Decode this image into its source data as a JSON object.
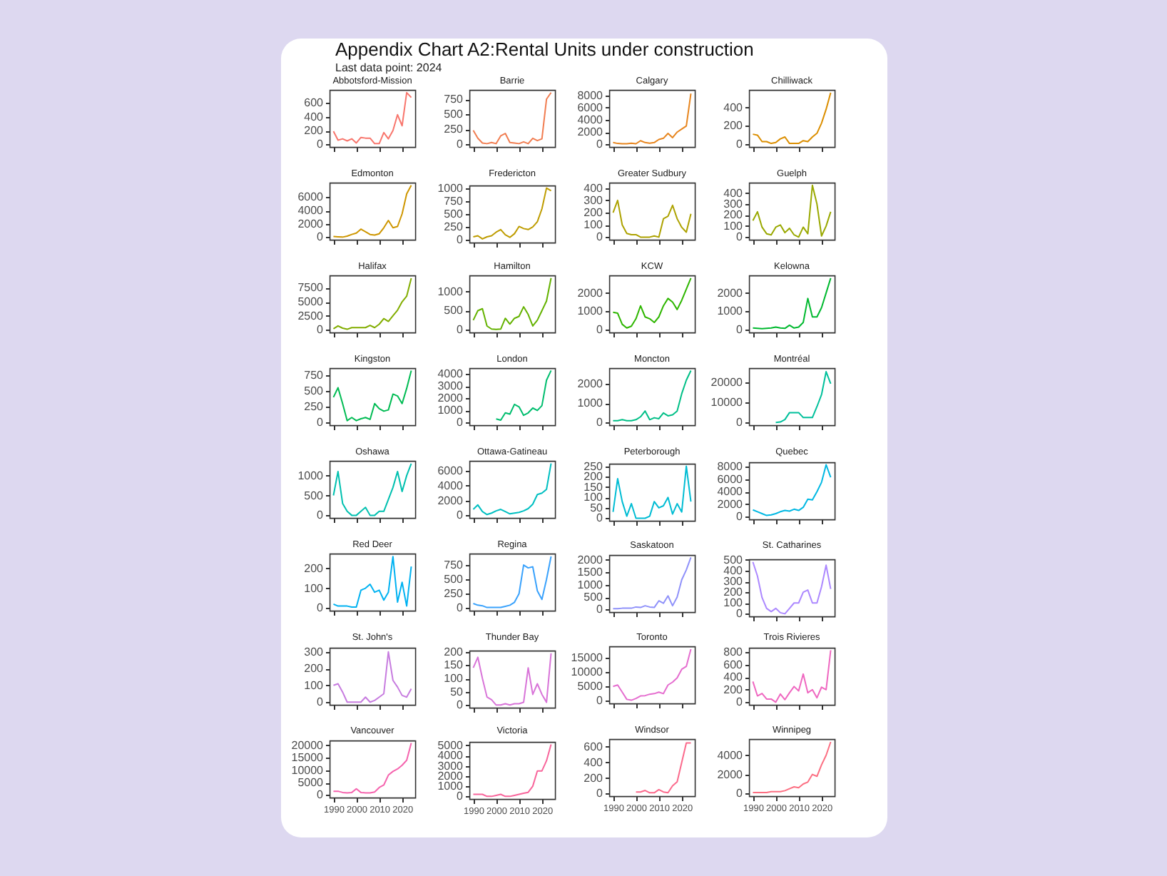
{
  "chart_data": [
    {
      "type": "other",
      "title": "Appendix Chart A2:Rental Units under construction",
      "subtitle": "Last data point: 2024"
    },
    {
      "type": "line",
      "title": "Abbotsford-Mission",
      "color": "#f8766d",
      "x": [
        1990,
        1992,
        1994,
        1996,
        1998,
        2000,
        2002,
        2004,
        2006,
        2008,
        2010,
        2012,
        2014,
        2016,
        2018,
        2020,
        2022,
        2024
      ],
      "values": [
        190,
        60,
        80,
        50,
        80,
        20,
        100,
        90,
        90,
        10,
        10,
        170,
        80,
        200,
        430,
        270,
        750,
        680
      ],
      "xlim": [
        1988.3,
        2025.7
      ],
      "xticks": [
        1990,
        2000,
        2010,
        2020
      ],
      "ylim": [
        -38,
        790
      ],
      "yticks": [
        0,
        200,
        400,
        600
      ],
      "tick_labels": "y"
    },
    {
      "type": "line",
      "title": "Barrie",
      "color": "#f17d51",
      "x": [
        1990,
        1992,
        1994,
        1996,
        1998,
        2000,
        2002,
        2004,
        2006,
        2008,
        2010,
        2012,
        2014,
        2016,
        2018,
        2020,
        2022,
        2024
      ],
      "values": [
        230,
        100,
        20,
        10,
        30,
        10,
        140,
        180,
        30,
        20,
        10,
        40,
        10,
        100,
        60,
        90,
        750,
        860
      ],
      "xlim": [
        1988.3,
        2025.7
      ],
      "xticks": [
        1990,
        2000,
        2010,
        2020
      ],
      "ylim": [
        -45,
        905
      ],
      "yticks": [
        0,
        250,
        500,
        750
      ],
      "tick_labels": "y"
    },
    {
      "type": "line",
      "title": "Calgary",
      "color": "#e7851e",
      "x": [
        1990,
        1992,
        1994,
        1996,
        1998,
        2000,
        2002,
        2004,
        2006,
        2008,
        2010,
        2012,
        2014,
        2016,
        2018,
        2020,
        2022,
        2024
      ],
      "values": [
        300,
        150,
        100,
        100,
        200,
        100,
        600,
        300,
        200,
        300,
        800,
        1000,
        1800,
        1100,
        2000,
        2500,
        3000,
        8300
      ],
      "xlim": [
        1988.3,
        2025.7
      ],
      "xticks": [
        1990,
        2000,
        2010,
        2020
      ],
      "ylim": [
        -420,
        8900
      ],
      "yticks": [
        0,
        2000,
        4000,
        6000,
        8000
      ],
      "tick_labels": "y"
    },
    {
      "type": "line",
      "title": "Chilliwack",
      "color": "#db8e00",
      "x": [
        1990,
        1992,
        1994,
        1996,
        1998,
        2000,
        2002,
        2004,
        2006,
        2008,
        2010,
        2012,
        2014,
        2016,
        2018,
        2020,
        2022,
        2024
      ],
      "values": [
        110,
        100,
        30,
        30,
        10,
        20,
        60,
        80,
        10,
        10,
        10,
        40,
        30,
        80,
        120,
        230,
        380,
        560
      ],
      "xlim": [
        1988.3,
        2025.7
      ],
      "xticks": [
        1990,
        2000,
        2010,
        2020
      ],
      "ylim": [
        -28,
        590
      ],
      "yticks": [
        0,
        200,
        400
      ],
      "tick_labels": "y"
    },
    {
      "type": "line",
      "title": "Edmonton",
      "color": "#ce9600",
      "x": [
        1990,
        1992,
        1994,
        1996,
        1998,
        2000,
        2002,
        2004,
        2006,
        2008,
        2010,
        2012,
        2014,
        2016,
        2018,
        2020,
        2022,
        2024
      ],
      "values": [
        100,
        50,
        0,
        150,
        400,
        600,
        1200,
        800,
        400,
        300,
        500,
        1400,
        2500,
        1400,
        1600,
        3500,
        6500,
        7800
      ],
      "xlim": [
        1988.3,
        2025.7
      ],
      "xticks": [
        1990,
        2000,
        2010,
        2020
      ],
      "ylim": [
        -390,
        8200
      ],
      "yticks": [
        0,
        2000,
        4000,
        6000
      ],
      "tick_labels": "y"
    },
    {
      "type": "line",
      "title": "Fredericton",
      "color": "#be9c00",
      "x": [
        1990,
        1992,
        1994,
        1996,
        1998,
        2000,
        2002,
        2004,
        2006,
        2008,
        2010,
        2012,
        2014,
        2016,
        2018,
        2020,
        2022,
        2024
      ],
      "values": [
        60,
        80,
        20,
        60,
        80,
        150,
        200,
        100,
        50,
        120,
        260,
        220,
        200,
        250,
        350,
        600,
        1000,
        950
      ],
      "xlim": [
        1988.3,
        2025.7
      ],
      "xticks": [
        1990,
        2000,
        2010,
        2020
      ],
      "ylim": [
        -50,
        1050
      ],
      "yticks": [
        0,
        250,
        500,
        750,
        1000
      ],
      "tick_labels": "y"
    },
    {
      "type": "line",
      "title": "Greater Sudbury",
      "color": "#ada200",
      "x": [
        1990,
        1992,
        1994,
        1996,
        1998,
        2000,
        2002,
        2004,
        2006,
        2008,
        2010,
        2012,
        2014,
        2016,
        2018,
        2020,
        2022,
        2024
      ],
      "values": [
        200,
        300,
        100,
        30,
        20,
        20,
        0,
        0,
        0,
        10,
        0,
        150,
        170,
        260,
        150,
        80,
        40,
        190
      ],
      "xlim": [
        1988.3,
        2025.7
      ],
      "xticks": [
        1990,
        2000,
        2010,
        2020
      ],
      "ylim": [
        -21,
        445
      ],
      "yticks": [
        0,
        100,
        200,
        300,
        400
      ],
      "tick_labels": "y"
    },
    {
      "type": "line",
      "title": "Guelph",
      "color": "#99a800",
      "x": [
        1990,
        1992,
        1994,
        1996,
        1998,
        2000,
        2002,
        2004,
        2006,
        2008,
        2010,
        2012,
        2014,
        2016,
        2018,
        2020,
        2022,
        2024
      ],
      "values": [
        150,
        230,
        90,
        30,
        20,
        90,
        110,
        40,
        80,
        20,
        0,
        90,
        30,
        470,
        300,
        10,
        100,
        230
      ],
      "xlim": [
        1988.3,
        2025.7
      ],
      "xticks": [
        1990,
        2000,
        2010,
        2020
      ],
      "ylim": [
        -24,
        495
      ],
      "yticks": [
        0,
        100,
        200,
        300,
        400
      ],
      "tick_labels": "y"
    },
    {
      "type": "line",
      "title": "Halifax",
      "color": "#82ad00",
      "x": [
        1990,
        1992,
        1994,
        1996,
        1998,
        2000,
        2002,
        2004,
        2006,
        2008,
        2010,
        2012,
        2014,
        2016,
        2018,
        2020,
        2022,
        2024
      ],
      "values": [
        200,
        700,
        300,
        100,
        400,
        400,
        400,
        400,
        800,
        400,
        1000,
        2000,
        1500,
        2500,
        3500,
        5000,
        6000,
        9200
      ],
      "xlim": [
        1988.3,
        2025.7
      ],
      "xticks": [
        1990,
        2000,
        2010,
        2020
      ],
      "ylim": [
        -460,
        9700
      ],
      "yticks": [
        0,
        2500,
        5000,
        7500
      ],
      "tick_labels": "y"
    },
    {
      "type": "line",
      "title": "Hamilton",
      "color": "#64b200",
      "x": [
        1990,
        1992,
        1994,
        1996,
        1998,
        2000,
        2002,
        2004,
        2006,
        2008,
        2010,
        2012,
        2014,
        2016,
        2018,
        2020,
        2022,
        2024
      ],
      "values": [
        250,
        500,
        550,
        100,
        20,
        10,
        20,
        300,
        150,
        300,
        350,
        600,
        400,
        100,
        250,
        500,
        750,
        1350
      ],
      "xlim": [
        1988.3,
        2025.7
      ],
      "xticks": [
        1990,
        2000,
        2010,
        2020
      ],
      "ylim": [
        -68,
        1420
      ],
      "yticks": [
        0,
        500,
        1000
      ],
      "tick_labels": "y"
    },
    {
      "type": "line",
      "title": "KCW",
      "color": "#2eb600",
      "x": [
        1990,
        1992,
        1994,
        1996,
        1998,
        2000,
        2002,
        2004,
        2006,
        2008,
        2010,
        2012,
        2014,
        2016,
        2018,
        2020,
        2022,
        2024
      ],
      "values": [
        950,
        900,
        300,
        100,
        200,
        600,
        1300,
        700,
        600,
        400,
        700,
        1300,
        1700,
        1500,
        1100,
        1600,
        2200,
        2800
      ],
      "xlim": [
        1988.3,
        2025.7
      ],
      "xticks": [
        1990,
        2000,
        2010,
        2020
      ],
      "ylim": [
        -140,
        2950
      ],
      "yticks": [
        0,
        1000,
        2000
      ],
      "tick_labels": "y"
    },
    {
      "type": "line",
      "title": "Kelowna",
      "color": "#00b92f",
      "x": [
        1990,
        1992,
        1994,
        1996,
        1998,
        2000,
        2002,
        2004,
        2006,
        2008,
        2010,
        2012,
        2014,
        2016,
        2018,
        2020,
        2022,
        2024
      ],
      "values": [
        100,
        80,
        60,
        80,
        100,
        150,
        100,
        80,
        250,
        100,
        150,
        400,
        1700,
        700,
        700,
        1200,
        2000,
        2800
      ],
      "xlim": [
        1988.3,
        2025.7
      ],
      "xticks": [
        1990,
        2000,
        2010,
        2020
      ],
      "ylim": [
        -140,
        2950
      ],
      "yticks": [
        0,
        1000,
        2000
      ],
      "tick_labels": "y"
    },
    {
      "type": "line",
      "title": "Kingston",
      "color": "#00bb53",
      "x": [
        1990,
        1992,
        1994,
        1996,
        1998,
        2000,
        2002,
        2004,
        2006,
        2008,
        2010,
        2012,
        2014,
        2016,
        2018,
        2020,
        2022,
        2024
      ],
      "values": [
        400,
        550,
        300,
        30,
        80,
        30,
        60,
        80,
        50,
        300,
        220,
        180,
        200,
        450,
        420,
        300,
        540,
        820
      ],
      "xlim": [
        1988.3,
        2025.7
      ],
      "xticks": [
        1990,
        2000,
        2010,
        2020
      ],
      "ylim": [
        -41,
        860
      ],
      "yticks": [
        0,
        250,
        500,
        750
      ],
      "tick_labels": "y"
    },
    {
      "type": "line",
      "title": "London",
      "color": "#00bd6e",
      "x": [
        2000,
        2002,
        2004,
        2006,
        2008,
        2010,
        2012,
        2014,
        2016,
        2018,
        2020,
        2022,
        2024
      ],
      "values": [
        300,
        200,
        800,
        700,
        1500,
        1300,
        600,
        800,
        1200,
        1000,
        1400,
        3500,
        4300
      ],
      "xlim": [
        1988.3,
        2025.7
      ],
      "xticks": [
        1990,
        2000,
        2010,
        2020
      ],
      "ylim": [
        -215,
        4500
      ],
      "yticks": [
        0,
        1000,
        2000,
        3000,
        4000
      ],
      "tick_labels": "y"
    },
    {
      "type": "line",
      "title": "Moncton",
      "color": "#00bf86",
      "x": [
        1990,
        1992,
        1994,
        1996,
        1998,
        2000,
        2002,
        2004,
        2006,
        2008,
        2010,
        2012,
        2014,
        2016,
        2018,
        2020,
        2022,
        2024
      ],
      "values": [
        100,
        100,
        150,
        100,
        100,
        150,
        300,
        600,
        150,
        250,
        200,
        500,
        350,
        400,
        600,
        1500,
        2200,
        2700
      ],
      "xlim": [
        1988.3,
        2025.7
      ],
      "xticks": [
        1990,
        2000,
        2010,
        2020
      ],
      "ylim": [
        -135,
        2830
      ],
      "yticks": [
        0,
        1000,
        2000
      ],
      "tick_labels": "y"
    },
    {
      "type": "line",
      "title": "Montréal",
      "color": "#00c09b",
      "x": [
        2000,
        2002,
        2004,
        2006,
        2008,
        2010,
        2012,
        2014,
        2016,
        2018,
        2020,
        2022,
        2024
      ],
      "values": [
        0,
        300,
        1500,
        5000,
        5000,
        5000,
        2500,
        2500,
        2500,
        8000,
        14000,
        25500,
        19500
      ],
      "xlim": [
        1988.3,
        2025.7
      ],
      "xticks": [
        1990,
        2000,
        2010,
        2020
      ],
      "ylim": [
        -1300,
        27300
      ],
      "yticks": [
        0,
        10000,
        20000
      ],
      "tick_labels": "y"
    },
    {
      "type": "line",
      "title": "Oshawa",
      "color": "#00c0af",
      "x": [
        1990,
        1992,
        1994,
        1996,
        1998,
        2000,
        2002,
        2004,
        2006,
        2008,
        2010,
        2012,
        2014,
        2016,
        2018,
        2020,
        2022,
        2024
      ],
      "values": [
        500,
        1100,
        300,
        100,
        0,
        0,
        100,
        200,
        0,
        0,
        100,
        100,
        400,
        700,
        1100,
        600,
        1000,
        1300
      ],
      "xlim": [
        1988.3,
        2025.7
      ],
      "xticks": [
        1990,
        2000,
        2010,
        2020
      ],
      "ylim": [
        -65,
        1370
      ],
      "yticks": [
        0,
        500,
        1000
      ],
      "tick_labels": "y"
    },
    {
      "type": "line",
      "title": "Ottawa-Gatineau",
      "color": "#00bfc1",
      "x": [
        1990,
        1992,
        1994,
        1996,
        1998,
        2000,
        2002,
        2004,
        2006,
        2008,
        2010,
        2012,
        2014,
        2016,
        2018,
        2020,
        2022,
        2024
      ],
      "values": [
        800,
        1400,
        500,
        100,
        300,
        600,
        800,
        500,
        200,
        300,
        400,
        600,
        900,
        1500,
        2800,
        3000,
        3500,
        7000
      ],
      "xlim": [
        1988.3,
        2025.7
      ],
      "xticks": [
        1990,
        2000,
        2010,
        2020
      ],
      "ylim": [
        -350,
        7350
      ],
      "yticks": [
        0,
        2000,
        4000,
        6000
      ],
      "tick_labels": "y"
    },
    {
      "type": "line",
      "title": "Peterborough",
      "color": "#00bcd3",
      "x": [
        1990,
        1992,
        1994,
        1996,
        1998,
        2000,
        2002,
        2004,
        2006,
        2008,
        2010,
        2012,
        2014,
        2016,
        2018,
        2020,
        2022,
        2024
      ],
      "values": [
        30,
        190,
        80,
        10,
        70,
        0,
        0,
        0,
        10,
        80,
        50,
        60,
        100,
        20,
        70,
        30,
        250,
        80
      ],
      "xlim": [
        1988.3,
        2025.7
      ],
      "xticks": [
        1990,
        2000,
        2010,
        2020
      ],
      "ylim": [
        -12,
        262
      ],
      "yticks": [
        0,
        50,
        100,
        150,
        200,
        250
      ],
      "tick_labels": "y"
    },
    {
      "type": "line",
      "title": "Quebec",
      "color": "#00b8e3",
      "x": [
        1990,
        1992,
        1994,
        1996,
        1998,
        2000,
        2002,
        2004,
        2006,
        2008,
        2010,
        2012,
        2014,
        2016,
        2018,
        2020,
        2022,
        2024
      ],
      "values": [
        1100,
        800,
        500,
        200,
        300,
        500,
        800,
        1000,
        900,
        1200,
        1000,
        1500,
        2800,
        2700,
        4000,
        5500,
        8300,
        6300
      ],
      "xlim": [
        1988.3,
        2025.7
      ],
      "xticks": [
        1990,
        2000,
        2010,
        2020
      ],
      "ylim": [
        -415,
        8700
      ],
      "yticks": [
        0,
        2000,
        4000,
        6000,
        8000
      ],
      "tick_labels": "y"
    },
    {
      "type": "line",
      "title": "Red Deer",
      "color": "#00b2f1",
      "x": [
        1990,
        1992,
        1994,
        1996,
        1998,
        2000,
        2002,
        2004,
        2006,
        2008,
        2010,
        2012,
        2014,
        2016,
        2018,
        2020,
        2022,
        2024
      ],
      "values": [
        20,
        10,
        10,
        10,
        5,
        5,
        90,
        100,
        120,
        80,
        90,
        40,
        80,
        260,
        30,
        130,
        10,
        210
      ],
      "xlim": [
        1988.3,
        2025.7
      ],
      "xticks": [
        1990,
        2000,
        2010,
        2020
      ],
      "ylim": [
        -13,
        275
      ],
      "yticks": [
        0,
        100,
        200
      ],
      "tick_labels": "y"
    },
    {
      "type": "line",
      "title": "Regina",
      "color": "#3aa2fc",
      "x": [
        1990,
        1992,
        1994,
        1996,
        1998,
        2000,
        2002,
        2004,
        2006,
        2008,
        2010,
        2012,
        2014,
        2016,
        2018,
        2020,
        2022,
        2024
      ],
      "values": [
        80,
        50,
        40,
        10,
        10,
        10,
        10,
        30,
        50,
        100,
        250,
        750,
        700,
        720,
        300,
        150,
        500,
        900
      ],
      "xlim": [
        1988.3,
        2025.7
      ],
      "xticks": [
        1990,
        2000,
        2010,
        2020
      ],
      "ylim": [
        -45,
        950
      ],
      "yticks": [
        0,
        250,
        500,
        750
      ],
      "tick_labels": "y"
    },
    {
      "type": "line",
      "title": "Saskatoon",
      "color": "#8f91fa",
      "x": [
        1990,
        1992,
        1994,
        1996,
        1998,
        2000,
        2002,
        2004,
        2006,
        2008,
        2010,
        2012,
        2014,
        2016,
        2018,
        2020,
        2022,
        2024
      ],
      "values": [
        30,
        30,
        50,
        50,
        50,
        100,
        80,
        150,
        100,
        80,
        350,
        250,
        550,
        150,
        500,
        1200,
        1600,
        2100
      ],
      "xlim": [
        1988.3,
        2025.7
      ],
      "xticks": [
        1990,
        2000,
        2010,
        2020
      ],
      "ylim": [
        -105,
        2200
      ],
      "yticks": [
        0,
        500,
        1000,
        1500,
        2000
      ],
      "tick_labels": "y"
    },
    {
      "type": "line",
      "title": "St. Catharines",
      "color": "#ac88ff",
      "x": [
        1990,
        1992,
        1994,
        1996,
        1998,
        2000,
        2002,
        2004,
        2006,
        2008,
        2010,
        2012,
        2014,
        2016,
        2018,
        2020,
        2022,
        2024
      ],
      "values": [
        480,
        350,
        150,
        50,
        20,
        50,
        10,
        0,
        50,
        100,
        100,
        200,
        220,
        100,
        100,
        250,
        450,
        230
      ],
      "xlim": [
        1988.3,
        2025.7
      ],
      "xticks": [
        1990,
        2000,
        2010,
        2020
      ],
      "ylim": [
        -24,
        505
      ],
      "yticks": [
        0,
        100,
        200,
        300,
        400,
        500
      ],
      "tick_labels": "y"
    },
    {
      "type": "line",
      "title": "St. John's",
      "color": "#c77cdf",
      "x": [
        1990,
        1992,
        1994,
        1996,
        1998,
        2000,
        2002,
        2004,
        2006,
        2008,
        2010,
        2012,
        2014,
        2016,
        2018,
        2020,
        2022,
        2024
      ],
      "values": [
        100,
        110,
        60,
        0,
        0,
        0,
        0,
        30,
        0,
        10,
        30,
        50,
        300,
        130,
        90,
        40,
        30,
        80
      ],
      "xlim": [
        1988.3,
        2025.7
      ],
      "xticks": [
        1990,
        2000,
        2010,
        2020
      ],
      "ylim": [
        -16,
        325
      ],
      "yticks": [
        0,
        100,
        200,
        300
      ],
      "tick_labels": "y"
    },
    {
      "type": "line",
      "title": "Thunder Bay",
      "color": "#d874d8",
      "x": [
        1990,
        1992,
        1994,
        1996,
        1998,
        2000,
        2002,
        2004,
        2006,
        2008,
        2010,
        2012,
        2014,
        2016,
        2018,
        2020,
        2022,
        2024
      ],
      "values": [
        140,
        180,
        100,
        30,
        20,
        0,
        0,
        5,
        0,
        5,
        5,
        10,
        140,
        40,
        80,
        40,
        10,
        195
      ],
      "xlim": [
        1988.3,
        2025.7
      ],
      "xticks": [
        1990,
        2000,
        2010,
        2020
      ],
      "ylim": [
        -10,
        205
      ],
      "yticks": [
        0,
        50,
        100,
        150,
        200
      ],
      "tick_labels": "y"
    },
    {
      "type": "line",
      "title": "Toronto",
      "color": "#e56dcf",
      "x": [
        1990,
        1992,
        1994,
        1996,
        1998,
        2000,
        2002,
        2004,
        2006,
        2008,
        2010,
        2012,
        2014,
        2016,
        2018,
        2020,
        2022,
        2024
      ],
      "values": [
        5000,
        5500,
        3000,
        500,
        200,
        800,
        1700,
        1800,
        2300,
        2500,
        3000,
        2500,
        5500,
        6500,
        8000,
        11000,
        12000,
        18000
      ],
      "xlim": [
        1988.3,
        2025.7
      ],
      "xticks": [
        1990,
        2000,
        2010,
        2020
      ],
      "ylim": [
        -900,
        19000
      ],
      "yticks": [
        0,
        5000,
        10000,
        15000
      ],
      "tick_labels": "y"
    },
    {
      "type": "line",
      "title": "Trois Rivieres",
      "color": "#ef67c0",
      "x": [
        1990,
        1992,
        1994,
        1996,
        1998,
        2000,
        2002,
        2004,
        2006,
        2008,
        2010,
        2012,
        2014,
        2016,
        2018,
        2020,
        2022,
        2024
      ],
      "values": [
        330,
        100,
        140,
        50,
        50,
        0,
        130,
        40,
        150,
        250,
        180,
        450,
        150,
        200,
        70,
        240,
        200,
        830
      ],
      "xlim": [
        1988.3,
        2025.7
      ],
      "xticks": [
        1990,
        2000,
        2010,
        2020
      ],
      "ylim": [
        -42,
        870
      ],
      "yticks": [
        0,
        200,
        400,
        600,
        800
      ],
      "tick_labels": "y"
    },
    {
      "type": "line",
      "title": "Vancouver",
      "color": "#f564ae",
      "x": [
        1990,
        1992,
        1994,
        1996,
        1998,
        2000,
        2002,
        2004,
        2006,
        2008,
        2010,
        2012,
        2014,
        2016,
        2018,
        2020,
        2022,
        2024
      ],
      "values": [
        1500,
        1500,
        1000,
        800,
        1000,
        2500,
        1000,
        800,
        800,
        1200,
        3000,
        4000,
        8000,
        9500,
        10500,
        12000,
        14000,
        21000
      ],
      "xlim": [
        1988.3,
        2025.7
      ],
      "xticks": [
        1990,
        2000,
        2010,
        2020
      ],
      "ylim": [
        -1050,
        22000
      ],
      "yticks": [
        0,
        5000,
        10000,
        15000,
        20000
      ]
    },
    {
      "type": "line",
      "title": "Victoria",
      "color": "#f8659b",
      "x": [
        1990,
        1992,
        1994,
        1996,
        1998,
        2000,
        2002,
        2004,
        2006,
        2008,
        2010,
        2012,
        2014,
        2016,
        2018,
        2020,
        2022,
        2024
      ],
      "values": [
        200,
        200,
        200,
        0,
        0,
        100,
        200,
        0,
        0,
        100,
        200,
        300,
        400,
        1000,
        2500,
        2500,
        3500,
        5100
      ],
      "xlim": [
        1988.3,
        2025.7
      ],
      "xticks": [
        1990,
        2000,
        2010,
        2020
      ],
      "ylim": [
        -255,
        5350
      ],
      "yticks": [
        0,
        1000,
        2000,
        3000,
        4000,
        5000
      ]
    },
    {
      "type": "line",
      "title": "Windsor",
      "color": "#fb6a8c",
      "x": [
        2000,
        2002,
        2004,
        2006,
        2008,
        2010,
        2012,
        2014,
        2016,
        2018,
        2020,
        2022,
        2024
      ],
      "values": [
        20,
        20,
        40,
        10,
        10,
        50,
        20,
        10,
        100,
        150,
        400,
        650,
        650
      ],
      "xlim": [
        1988.3,
        2025.7
      ],
      "xticks": [
        1990,
        2000,
        2010,
        2020
      ],
      "ylim": [
        -33,
        700
      ],
      "yticks": [
        0,
        200,
        400,
        600
      ]
    },
    {
      "type": "line",
      "title": "Winnipeg",
      "color": "#fc6f82",
      "x": [
        1990,
        1992,
        1994,
        1996,
        1998,
        2000,
        2002,
        2004,
        2006,
        2008,
        2010,
        2012,
        2014,
        2016,
        2018,
        2020,
        2022,
        2024
      ],
      "values": [
        100,
        100,
        100,
        100,
        200,
        200,
        200,
        300,
        500,
        700,
        600,
        1000,
        1200,
        2000,
        1800,
        3000,
        4000,
        5400
      ],
      "xlim": [
        1988.3,
        2025.7
      ],
      "xticks": [
        1990,
        2000,
        2010,
        2020
      ],
      "ylim": [
        -270,
        5700
      ],
      "yticks": [
        0,
        2000,
        4000
      ]
    }
  ]
}
